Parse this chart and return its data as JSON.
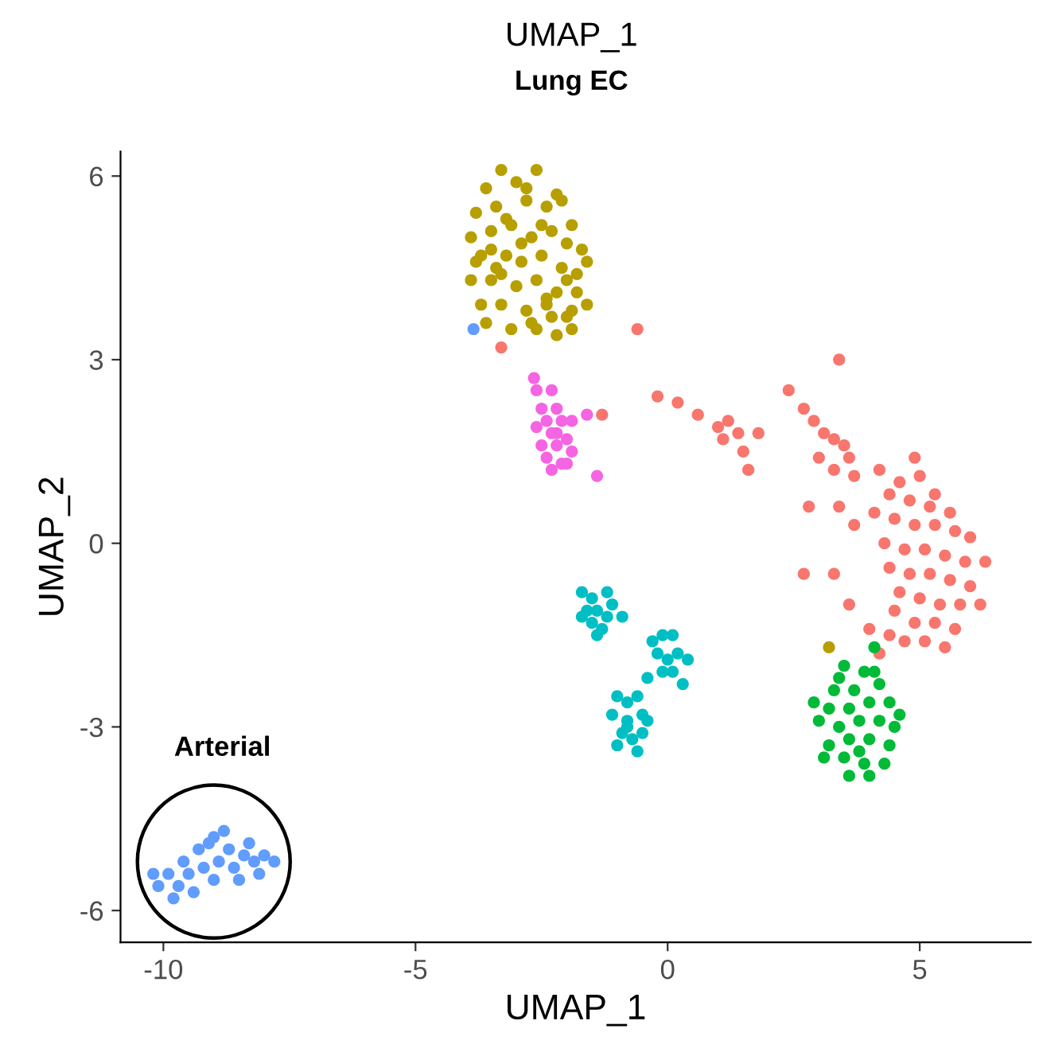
{
  "chart_data": {
    "type": "scatter",
    "title": "UMAP_1",
    "subtitle": "Lung EC",
    "xlabel": "UMAP_1",
    "ylabel": "UMAP_2",
    "xlim": [
      -10.85,
      7.2
    ],
    "ylim": [
      -6.52,
      6.4
    ],
    "xticks": [
      -10,
      -5,
      0,
      5
    ],
    "yticks": [
      -6,
      -3,
      0,
      3,
      6
    ],
    "grid": false,
    "legend": false,
    "marker": "circle",
    "annotations": [
      "Arterial"
    ],
    "series": [
      {
        "color": "#f8766d",
        "x": [
          -3.3,
          -0.6,
          -1.3,
          -0.2,
          0.2,
          0.6,
          1.0,
          1.2,
          1.4,
          1.1,
          1.5,
          1.8,
          1.6,
          2.4,
          3.4,
          2.7,
          2.9,
          3.1,
          3.3,
          3.5,
          3.0,
          3.6,
          3.3,
          3.7,
          2.8,
          3.4,
          3.7,
          2.7,
          3.3,
          3.6,
          4.0,
          4.4,
          4.7,
          4.2,
          4.2,
          4.6,
          5.0,
          4.4,
          4.8,
          5.3,
          5.6,
          4.1,
          4.5,
          4.9,
          5.3,
          5.7,
          6.0,
          4.3,
          4.7,
          5.1,
          5.5,
          5.9,
          6.3,
          4.4,
          4.8,
          5.2,
          5.6,
          6.0,
          4.6,
          5.0,
          5.4,
          5.8,
          6.2,
          4.9,
          5.3,
          5.7,
          5.1,
          5.5,
          4.5,
          5.2,
          4.9
        ],
        "values": [
          3.2,
          3.5,
          2.1,
          2.4,
          2.3,
          2.1,
          1.9,
          2.0,
          1.8,
          1.7,
          1.5,
          1.8,
          1.2,
          2.5,
          3.0,
          2.2,
          2.0,
          1.8,
          1.7,
          1.6,
          1.4,
          1.4,
          1.2,
          1.1,
          0.6,
          0.6,
          0.3,
          -0.5,
          -0.5,
          -1.0,
          -1.4,
          -1.5,
          -1.6,
          -1.8,
          1.2,
          1.0,
          1.1,
          0.8,
          0.7,
          0.8,
          0.5,
          0.5,
          0.4,
          0.3,
          0.3,
          0.2,
          0.1,
          0.0,
          -0.1,
          -0.1,
          -0.2,
          -0.3,
          -0.3,
          -0.4,
          -0.5,
          -0.5,
          -0.6,
          -0.7,
          -0.8,
          -0.9,
          -1.0,
          -1.0,
          -1.0,
          -1.3,
          -1.3,
          -1.4,
          -1.6,
          -1.7,
          -1.1,
          0.6,
          1.4
        ]
      },
      {
        "color": "#b79f00",
        "x": [
          -3.3,
          -2.6,
          -3.6,
          -3.0,
          -2.2,
          -3.8,
          -3.4,
          -2.8,
          -2.4,
          -1.9,
          -3.9,
          -3.5,
          -3.1,
          -2.7,
          -2.3,
          -2.0,
          -1.7,
          -3.7,
          -3.2,
          -2.9,
          -2.5,
          -2.1,
          -1.8,
          -3.9,
          -3.5,
          -3.0,
          -2.6,
          -2.2,
          -1.8,
          -3.7,
          -3.3,
          -2.8,
          -2.4,
          -2.0,
          -1.6,
          -3.6,
          -3.1,
          -2.7,
          -2.3,
          -1.9,
          -3.4,
          -2.9,
          -2.4,
          -2.0,
          -1.6,
          -3.8,
          -3.2,
          -2.5,
          -2.1,
          -3.5,
          -2.8,
          -3.3,
          -2.6,
          -2.2,
          -1.9,
          3.2
        ],
        "values": [
          6.1,
          6.1,
          5.8,
          5.9,
          5.7,
          5.4,
          5.5,
          5.6,
          5.5,
          5.2,
          5.0,
          5.1,
          5.2,
          5.0,
          5.1,
          4.9,
          4.8,
          4.7,
          4.7,
          4.6,
          4.7,
          4.5,
          4.4,
          4.3,
          4.3,
          4.2,
          4.3,
          4.1,
          4.1,
          3.9,
          3.9,
          3.8,
          3.9,
          3.7,
          3.9,
          3.6,
          3.5,
          3.6,
          3.7,
          3.5,
          4.5,
          4.9,
          4.0,
          4.3,
          4.6,
          4.6,
          5.3,
          5.2,
          5.6,
          4.8,
          5.8,
          4.4,
          3.5,
          3.4,
          3.8,
          -1.7
        ]
      },
      {
        "color": "#00ba38",
        "x": [
          4.1,
          3.5,
          3.9,
          4.1,
          3.3,
          3.7,
          4.2,
          2.9,
          3.2,
          3.6,
          4.0,
          4.4,
          3.0,
          3.4,
          3.8,
          4.2,
          4.5,
          3.2,
          3.6,
          4.0,
          4.4,
          3.1,
          3.5,
          3.9,
          4.3,
          3.6,
          4.0,
          3.8,
          4.6,
          3.4
        ],
        "values": [
          -1.7,
          -2.0,
          -2.1,
          -2.1,
          -2.4,
          -2.4,
          -2.3,
          -2.6,
          -2.7,
          -2.7,
          -2.6,
          -2.6,
          -2.9,
          -3.0,
          -2.9,
          -2.9,
          -3.0,
          -3.3,
          -3.2,
          -3.2,
          -3.3,
          -3.5,
          -3.5,
          -3.6,
          -3.6,
          -3.8,
          -3.8,
          -3.4,
          -2.8,
          -2.2
        ]
      },
      {
        "color": "#00bfc4",
        "x": [
          -1.7,
          -1.5,
          -1.6,
          -1.4,
          -1.2,
          -1.5,
          -1.3,
          -1.1,
          -0.9,
          -1.4,
          -1.7,
          -1.2,
          -0.3,
          -0.1,
          0.1,
          -0.2,
          0.0,
          0.2,
          -0.1,
          0.1,
          0.3,
          -0.4,
          0.4,
          -1.0,
          -0.8,
          -0.6,
          -1.1,
          -0.8,
          -0.5,
          -0.9,
          -0.7,
          -0.5,
          -1.0,
          -0.6,
          -0.4,
          -0.8
        ],
        "values": [
          -0.8,
          -0.9,
          -1.1,
          -1.1,
          -1.2,
          -1.3,
          -1.4,
          -1.0,
          -1.2,
          -1.5,
          -1.2,
          -0.8,
          -1.6,
          -1.5,
          -1.5,
          -1.8,
          -1.9,
          -1.8,
          -2.1,
          -2.1,
          -2.3,
          -2.2,
          -1.9,
          -2.5,
          -2.6,
          -2.5,
          -2.8,
          -2.9,
          -2.8,
          -3.1,
          -3.2,
          -3.1,
          -3.3,
          -3.4,
          -2.9,
          -3.0
        ]
      },
      {
        "color": "#619cff",
        "x": [
          -10.1,
          -9.9,
          -9.7,
          -9.8,
          -9.5,
          -9.4,
          -9.2,
          -9.0,
          -9.3,
          -9.0,
          -8.8,
          -8.7,
          -8.6,
          -8.4,
          -8.5,
          -8.2,
          -8.0,
          -8.1,
          -8.9,
          -9.1,
          -8.3,
          -7.8,
          -9.6,
          -10.2,
          -3.85
        ],
        "values": [
          -5.6,
          -5.4,
          -5.6,
          -5.8,
          -5.4,
          -5.7,
          -5.3,
          -5.5,
          -5.0,
          -4.8,
          -4.7,
          -5.0,
          -5.3,
          -5.1,
          -5.5,
          -5.2,
          -5.1,
          -5.4,
          -5.2,
          -4.9,
          -4.9,
          -5.2,
          -5.2,
          -5.4,
          3.5
        ]
      },
      {
        "color": "#f564e3",
        "x": [
          -2.6,
          -2.3,
          -2.5,
          -2.2,
          -2.4,
          -2.1,
          -2.6,
          -2.3,
          -2.0,
          -2.5,
          -2.2,
          -1.9,
          -2.4,
          -2.1,
          -2.3,
          -2.0,
          -2.2,
          -1.9,
          -2.65,
          -1.6,
          -1.4
        ],
        "values": [
          2.5,
          2.5,
          2.2,
          2.2,
          2.0,
          2.0,
          1.9,
          1.8,
          1.7,
          1.6,
          1.6,
          1.5,
          1.4,
          1.3,
          1.2,
          1.3,
          1.8,
          2.0,
          2.7,
          2.1,
          1.1
        ]
      }
    ]
  }
}
